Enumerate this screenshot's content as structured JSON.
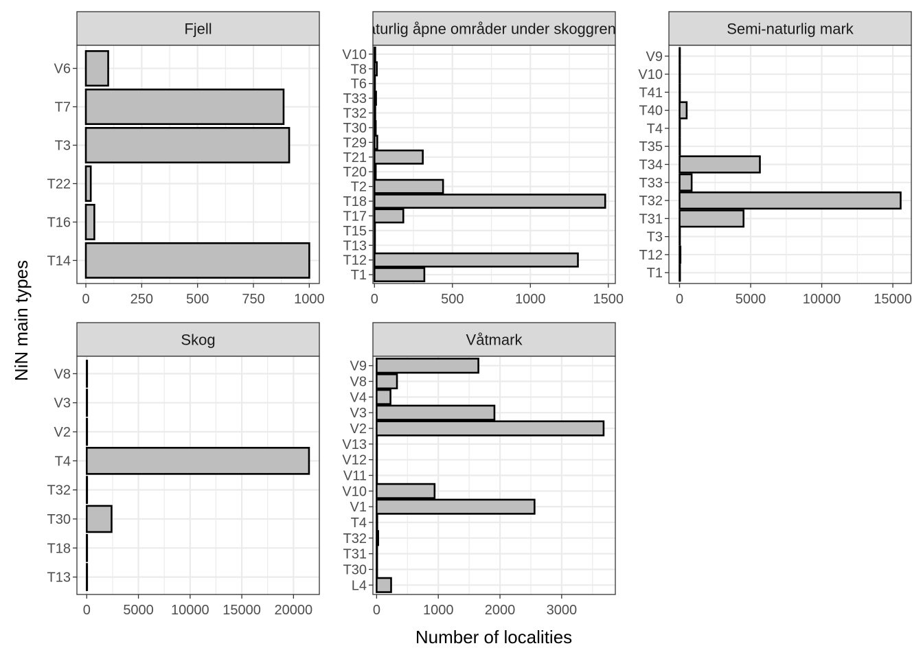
{
  "chart_data": {
    "type": "bar",
    "orientation": "horizontal",
    "xlabel": "Number of localities",
    "ylabel": "NiN main types",
    "grid": true,
    "colors": {
      "bar_fill": "#bebebe",
      "bar_stroke": "#000000",
      "strip_fill": "#d9d9d9",
      "grid": "#ebebeb",
      "panel_border": "#333333"
    },
    "facets": [
      {
        "title": "Fjell",
        "categories": [
          "V6",
          "T7",
          "T3",
          "T22",
          "T16",
          "T14"
        ],
        "values": [
          100,
          885,
          910,
          22,
          38,
          1000
        ],
        "xlim": [
          -40,
          1045
        ],
        "xticks": [
          0,
          250,
          500,
          750,
          1000
        ]
      },
      {
        "title": "Naturlig åpne områder under skoggrensa",
        "categories": [
          "V10",
          "T8",
          "T6",
          "T33",
          "T32",
          "T30",
          "T29",
          "T21",
          "T20",
          "T2",
          "T18",
          "T17",
          "T15",
          "T13",
          "T12",
          "T1"
        ],
        "values": [
          5,
          15,
          3,
          10,
          5,
          8,
          18,
          310,
          8,
          440,
          1480,
          185,
          3,
          3,
          1305,
          320
        ],
        "xlim": [
          -10,
          1545
        ],
        "xticks": [
          0,
          500,
          1000,
          1500
        ]
      },
      {
        "title": "Semi-naturlig mark",
        "categories": [
          "V9",
          "V10",
          "T41",
          "T40",
          "T4",
          "T35",
          "T34",
          "T33",
          "T32",
          "T31",
          "T3",
          "T12",
          "T1"
        ],
        "values": [
          10,
          10,
          10,
          500,
          10,
          10,
          5650,
          850,
          15550,
          4500,
          10,
          60,
          30
        ],
        "xlim": [
          -750,
          16300
        ],
        "xticks": [
          0,
          5000,
          10000,
          15000
        ]
      },
      {
        "title": "Skog",
        "categories": [
          "V8",
          "V3",
          "V2",
          "T4",
          "T32",
          "T30",
          "T18",
          "T13"
        ],
        "values": [
          5,
          5,
          5,
          21500,
          5,
          2400,
          5,
          5
        ],
        "xlim": [
          -950,
          22500
        ],
        "xticks": [
          0,
          5000,
          10000,
          15000,
          20000
        ]
      },
      {
        "title": "Våtmark",
        "categories": [
          "V9",
          "V8",
          "V4",
          "V3",
          "V2",
          "V13",
          "V12",
          "V11",
          "V10",
          "V1",
          "T4",
          "T32",
          "T31",
          "T30",
          "L4"
        ],
        "values": [
          1650,
          330,
          225,
          1910,
          3680,
          5,
          5,
          5,
          940,
          2560,
          10,
          25,
          8,
          8,
          235
        ],
        "xlim": [
          -60,
          3870
        ],
        "xticks": [
          0,
          1000,
          2000,
          3000
        ]
      }
    ]
  }
}
